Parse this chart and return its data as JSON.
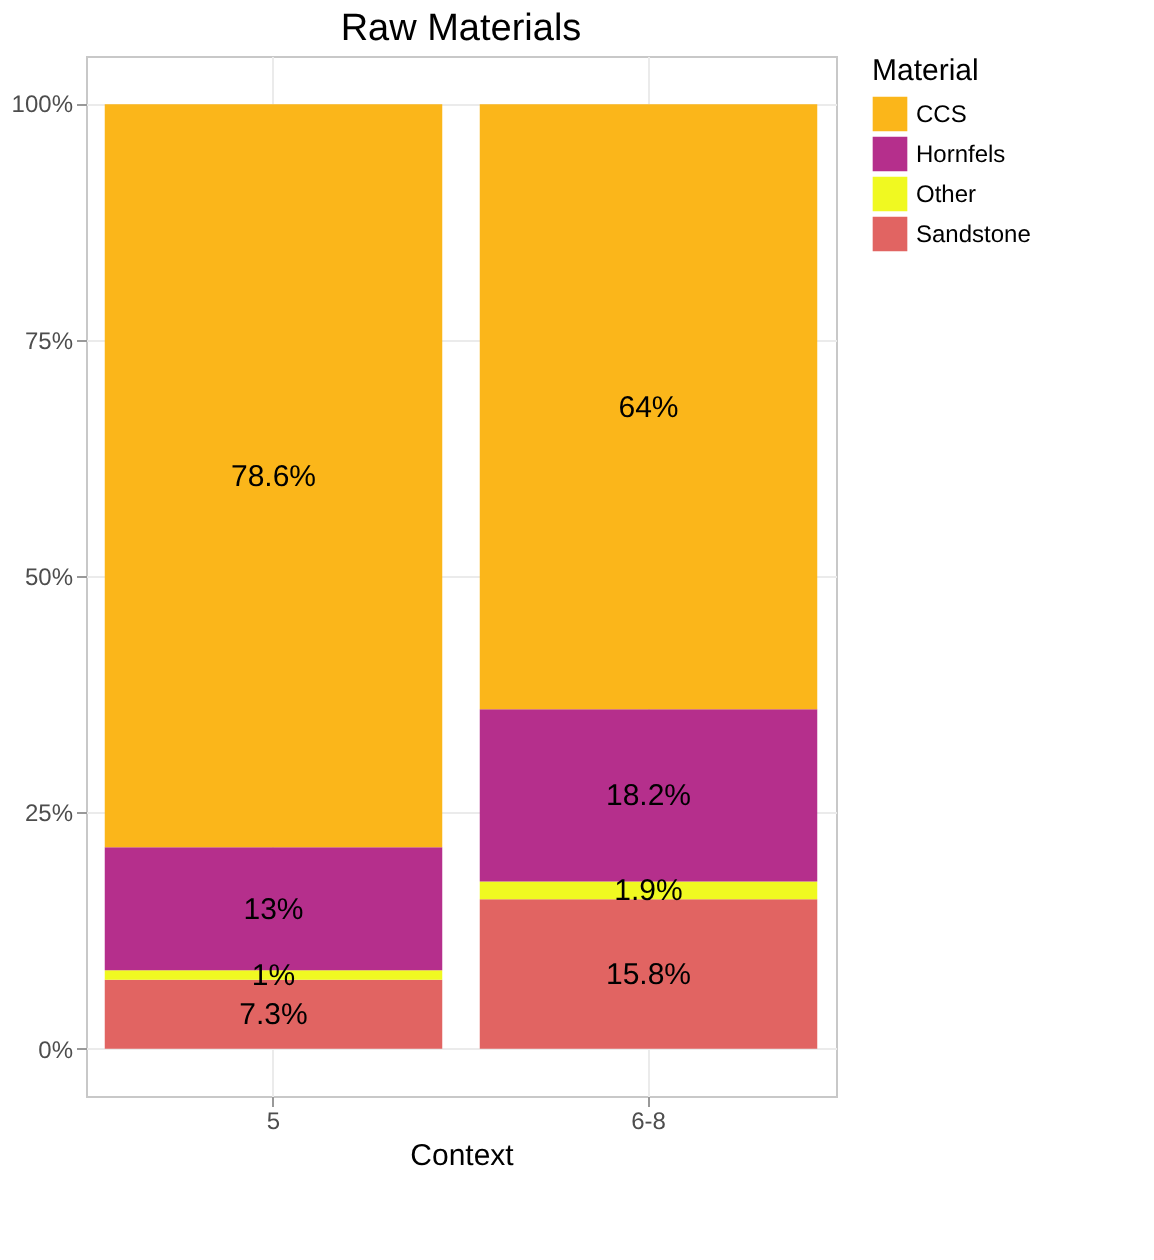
{
  "chart_data": {
    "type": "bar",
    "title": "Raw Materials",
    "xlabel": "Context",
    "legend_title": "Material",
    "categories": [
      "5",
      "6-8"
    ],
    "stacked": true,
    "series": [
      {
        "name": "Sandstone",
        "color": "#e16462",
        "values": [
          7.3,
          15.8
        ],
        "value_labels": [
          "7.3%",
          "15.8%"
        ]
      },
      {
        "name": "Other",
        "color": "#f0f921",
        "values": [
          1,
          1.9
        ],
        "value_labels": [
          "1%",
          "1.9%"
        ]
      },
      {
        "name": "Hornfels",
        "color": "#b52f8c",
        "values": [
          13,
          18.2
        ],
        "value_labels": [
          "13%",
          "18.2%"
        ]
      },
      {
        "name": "CCS",
        "color": "#fbb61a",
        "values": [
          78.6,
          64
        ],
        "value_labels": [
          "78.6%",
          "64%"
        ]
      }
    ],
    "ylim": [
      -5,
      105
    ],
    "yticks": [
      {
        "value": 0,
        "label": "0%"
      },
      {
        "value": 25,
        "label": "25%"
      },
      {
        "value": 50,
        "label": "50%"
      },
      {
        "value": 75,
        "label": "75%"
      },
      {
        "value": 100,
        "label": "100%"
      }
    ],
    "grid": true,
    "legend": "right"
  }
}
